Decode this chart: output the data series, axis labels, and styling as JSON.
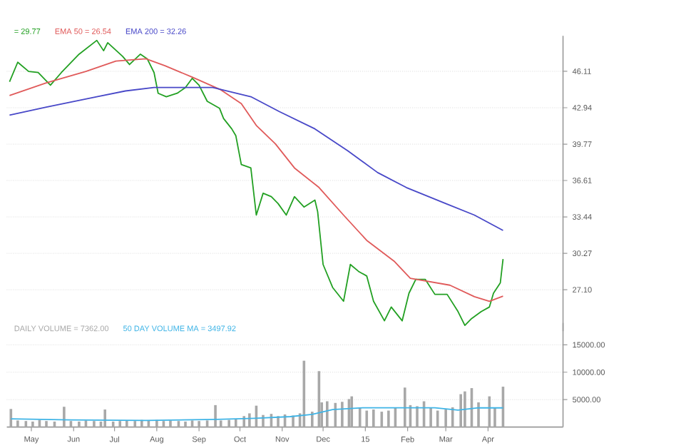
{
  "chart_data": [
    {
      "type": "line",
      "xlim": [
        "2014-04-13",
        "2015-05-26"
      ],
      "ylim": [
        23.5,
        49.2
      ],
      "yticks": [
        {
          "value": 27.1,
          "label": "27.10"
        },
        30.27,
        33.44,
        36.61,
        39.77,
        42.94,
        46.11
      ],
      "grid": "y",
      "tick_labels": "y",
      "series": [
        {
          "name": "= 29.77",
          "color": "#22a022",
          "x": [
            "2014-04-15",
            "2014-04-21",
            "2014-04-29",
            "2014-05-06",
            "2014-05-15",
            "2014-05-23",
            "2014-06-05",
            "2014-06-18",
            "2014-06-23",
            "2014-06-26",
            "2014-07-07",
            "2014-07-12",
            "2014-07-20",
            "2014-07-25",
            "2014-07-30",
            "2014-08-02",
            "2014-08-08",
            "2014-08-16",
            "2014-08-22",
            "2014-08-27",
            "2014-09-01",
            "2014-09-07",
            "2014-09-16",
            "2014-09-19",
            "2014-09-25",
            "2014-09-28",
            "2014-10-02",
            "2014-10-09",
            "2014-10-13",
            "2014-10-18",
            "2014-10-24",
            "2014-10-29",
            "2014-11-04",
            "2014-11-10",
            "2014-11-17",
            "2014-11-25",
            "2014-11-27",
            "2014-12-01",
            "2014-12-08",
            "2014-12-16",
            "2014-12-21",
            "2014-12-27",
            "2015-01-02",
            "2015-01-07",
            "2015-01-15",
            "2015-01-20",
            "2015-01-28",
            "2015-02-02",
            "2015-02-07",
            "2015-02-14",
            "2015-02-21",
            "2015-03-02",
            "2015-03-10",
            "2015-03-15",
            "2015-03-20",
            "2015-03-27",
            "2015-04-02",
            "2015-04-05",
            "2015-04-10",
            "2015-04-12"
          ],
          "values": [
            45.2,
            46.9,
            46.1,
            46.0,
            44.9,
            46.0,
            47.6,
            48.8,
            47.9,
            48.6,
            47.4,
            46.7,
            47.6,
            47.2,
            46.0,
            44.2,
            43.9,
            44.2,
            44.7,
            45.5,
            44.9,
            43.5,
            42.9,
            42.0,
            41.1,
            40.5,
            38.0,
            37.7,
            33.6,
            35.5,
            35.2,
            34.6,
            33.6,
            35.2,
            34.3,
            34.9,
            33.9,
            29.3,
            27.3,
            26.1,
            29.3,
            28.7,
            28.3,
            26.1,
            24.4,
            25.6,
            24.4,
            26.8,
            28.0,
            28.0,
            26.7,
            26.7,
            25.2,
            24.0,
            24.6,
            25.2,
            25.6,
            26.8,
            27.7,
            29.77
          ]
        },
        {
          "name": "EMA 50 = 26.54",
          "color": "#e05a5a",
          "x": [
            "2014-04-15",
            "2014-05-12",
            "2014-06-10",
            "2014-07-02",
            "2014-07-24",
            "2014-08-07",
            "2014-08-27",
            "2014-09-17",
            "2014-10-02",
            "2014-10-13",
            "2014-10-27",
            "2014-11-10",
            "2014-11-28",
            "2014-12-16",
            "2015-01-02",
            "2015-01-22",
            "2015-02-03",
            "2015-03-04",
            "2015-03-22",
            "2015-04-02",
            "2015-04-12"
          ],
          "values": [
            44.0,
            45.1,
            46.1,
            47.0,
            47.2,
            46.6,
            45.6,
            44.5,
            43.3,
            41.4,
            39.8,
            37.7,
            36.0,
            33.6,
            31.4,
            29.6,
            28.1,
            27.5,
            26.5,
            26.1,
            26.54
          ]
        },
        {
          "name": "EMA 200 = 32.26",
          "color": "#4848c8",
          "x": [
            "2014-04-15",
            "2014-05-12",
            "2014-06-18",
            "2014-07-09",
            "2014-07-30",
            "2014-09-11",
            "2014-10-09",
            "2014-10-30",
            "2014-11-25",
            "2014-12-19",
            "2015-01-10",
            "2015-01-31",
            "2015-03-01",
            "2015-03-22",
            "2015-04-12"
          ],
          "values": [
            42.3,
            43.0,
            43.9,
            44.4,
            44.7,
            44.7,
            43.9,
            42.6,
            41.1,
            39.2,
            37.3,
            36.0,
            34.6,
            33.6,
            32.26
          ]
        }
      ]
    },
    {
      "type": "bar",
      "xlim": [
        "2014-04-13",
        "2015-05-26"
      ],
      "ylim": [
        0,
        19000
      ],
      "xticks": [
        {
          "value": "2014-05-01",
          "label": "May"
        },
        {
          "value": "2014-06-01",
          "label": "Jun"
        },
        {
          "value": "2014-07-01",
          "label": "Jul"
        },
        {
          "value": "2014-08-01",
          "label": "Aug"
        },
        {
          "value": "2014-09-01",
          "label": "Sep"
        },
        {
          "value": "2014-10-01",
          "label": "Oct"
        },
        {
          "value": "2014-11-01",
          "label": "Nov"
        },
        {
          "value": "2014-12-01",
          "label": "Dec"
        },
        {
          "value": "2015-01-01",
          "label": "15"
        },
        {
          "value": "2015-02-01",
          "label": "Feb"
        },
        {
          "value": "2015-03-01",
          "label": "Mar"
        },
        {
          "value": "2015-04-01",
          "label": "Apr"
        }
      ],
      "yticks": [
        {
          "value": 5000,
          "label": "5000.00"
        },
        {
          "value": 10000,
          "label": "10000.00"
        },
        {
          "value": 15000,
          "label": "15000.00"
        }
      ],
      "grid": "y",
      "series": [
        {
          "name": "DAILY VOLUME = 7362.00",
          "color": "#a8a8a8",
          "type": "bar",
          "x": [
            "2014-04-16",
            "2014-04-21",
            "2014-04-27",
            "2014-05-02",
            "2014-05-07",
            "2014-05-12",
            "2014-05-18",
            "2014-05-25",
            "2014-05-30",
            "2014-06-05",
            "2014-06-10",
            "2014-06-16",
            "2014-06-21",
            "2014-06-24",
            "2014-06-30",
            "2014-07-05",
            "2014-07-10",
            "2014-07-16",
            "2014-07-21",
            "2014-07-26",
            "2014-08-01",
            "2014-08-06",
            "2014-08-11",
            "2014-08-17",
            "2014-08-22",
            "2014-08-27",
            "2014-09-01",
            "2014-09-07",
            "2014-09-13",
            "2014-09-17",
            "2014-09-23",
            "2014-09-28",
            "2014-10-04",
            "2014-10-08",
            "2014-10-13",
            "2014-10-18",
            "2014-10-24",
            "2014-10-29",
            "2014-11-03",
            "2014-11-09",
            "2014-11-14",
            "2014-11-17",
            "2014-11-23",
            "2014-11-28",
            "2014-11-30",
            "2014-12-04",
            "2014-12-10",
            "2014-12-15",
            "2014-12-20",
            "2014-12-22",
            "2014-12-28",
            "2015-01-02",
            "2015-01-07",
            "2015-01-13",
            "2015-01-18",
            "2015-01-23",
            "2015-01-30",
            "2015-02-03",
            "2015-02-08",
            "2015-02-13",
            "2015-02-18",
            "2015-02-23",
            "2015-03-01",
            "2015-03-06",
            "2015-03-12",
            "2015-03-15",
            "2015-03-20",
            "2015-03-25",
            "2015-04-02",
            "2015-04-06",
            "2015-04-12"
          ],
          "values": [
            3300,
            1200,
            1100,
            1000,
            1300,
            1100,
            1000,
            3700,
            1100,
            1000,
            1200,
            1100,
            1000,
            3200,
            1000,
            1100,
            1200,
            1100,
            1300,
            1200,
            1300,
            1100,
            1200,
            1100,
            1000,
            1200,
            1100,
            1200,
            4000,
            1200,
            1300,
            1500,
            2000,
            2500,
            3900,
            2200,
            2400,
            2000,
            2300,
            2100,
            2500,
            12100,
            2800,
            10200,
            4500,
            4700,
            4400,
            4600,
            5100,
            5600,
            3500,
            3000,
            3200,
            2800,
            3000,
            3500,
            7200,
            4000,
            3800,
            4700,
            3500,
            3000,
            3200,
            3600,
            6000,
            6500,
            7100,
            4500,
            5600,
            3500,
            7362
          ]
        },
        {
          "name": "50 DAY VOLUME MA = 3497.92",
          "color": "#3fb4e6",
          "type": "line",
          "x": [
            "2014-04-16",
            "2014-05-30",
            "2014-07-24",
            "2014-09-14",
            "2014-10-12",
            "2014-11-07",
            "2014-11-23",
            "2014-12-08",
            "2014-12-30",
            "2015-01-31",
            "2015-02-21",
            "2015-03-10",
            "2015-03-25",
            "2015-04-12"
          ],
          "values": [
            1500,
            1300,
            1200,
            1400,
            1600,
            1900,
            2300,
            3200,
            3500,
            3500,
            3500,
            3100,
            3500,
            3497.92
          ]
        }
      ]
    }
  ]
}
